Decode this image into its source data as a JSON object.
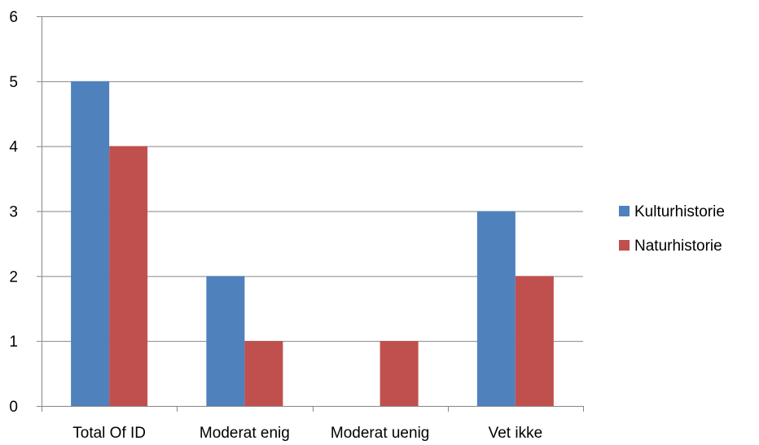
{
  "chart_data": {
    "type": "bar",
    "categories": [
      "Total Of ID",
      "Moderat enig",
      "Moderat uenig",
      "Vet ikke"
    ],
    "series": [
      {
        "name": "Kulturhistorie",
        "values": [
          5,
          2,
          0,
          3
        ],
        "color": "#4F81BD"
      },
      {
        "name": "Naturhistorie",
        "values": [
          4,
          1,
          1,
          2
        ],
        "color": "#C0504D"
      }
    ],
    "ylim": [
      0,
      6
    ],
    "yticks": [
      0,
      1,
      2,
      3,
      4,
      5,
      6
    ],
    "grid": true,
    "legend_position": "right",
    "gridline_color": "#868686"
  }
}
